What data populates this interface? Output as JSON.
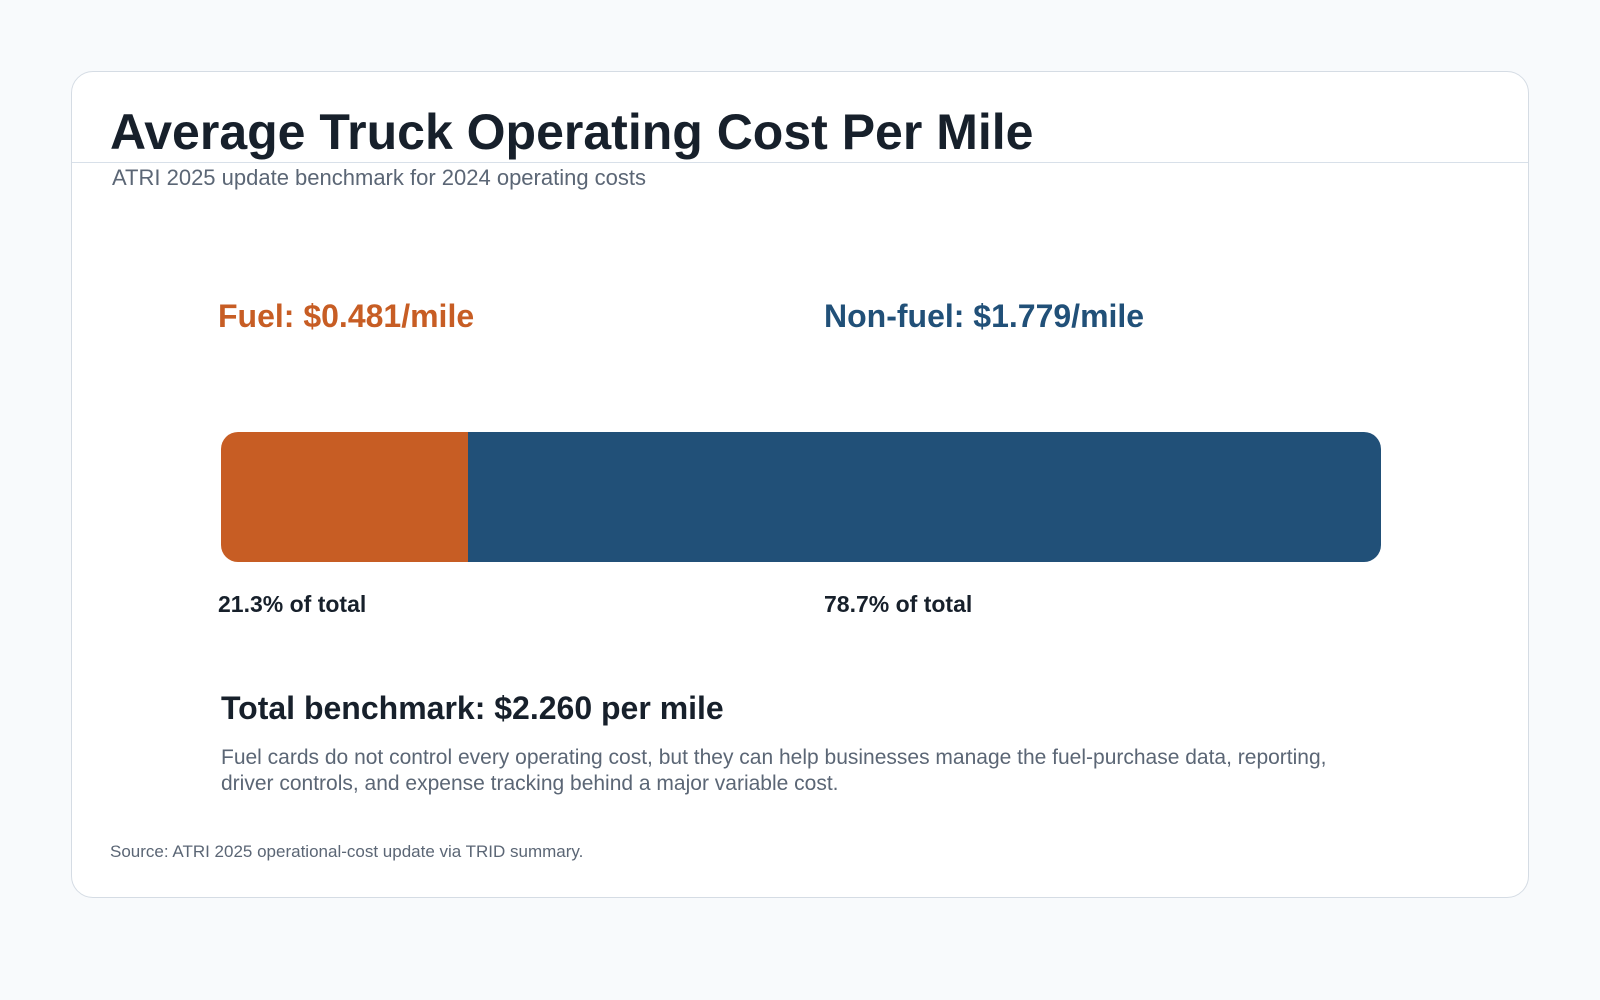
{
  "title": "Average Truck Operating Cost Per Mile",
  "subtitle": "ATRI 2025 update benchmark for 2024 operating costs",
  "segments": [
    {
      "label": "Fuel: $0.481/mile",
      "share": "21.3% of total"
    },
    {
      "label": "Non-fuel: $1.779/mile",
      "share": "78.7% of total"
    }
  ],
  "total": "Total benchmark: $2.260 per mile",
  "note": "Fuel cards do not control every operating cost, but they can help businesses manage the fuel-purchase data, reporting, driver controls, and expense tracking behind a major variable cost.",
  "source": "Source: ATRI 2025 operational-cost update via TRID summary.",
  "colors": {
    "fuel": "#c75d24",
    "non_fuel": "#215078"
  },
  "chart_data": {
    "type": "bar",
    "orientation": "horizontal",
    "stacked": true,
    "categories": [
      "Fuel",
      "Non-fuel"
    ],
    "values": [
      0.481,
      1.779
    ],
    "percent_of_total": [
      21.3,
      78.7
    ],
    "total": 2.26,
    "unit": "$/mile",
    "title": "Average Truck Operating Cost Per Mile",
    "subtitle": "ATRI 2025 update benchmark for 2024 operating costs",
    "xlabel": "",
    "ylabel": "",
    "grid": false,
    "legend": "none"
  }
}
